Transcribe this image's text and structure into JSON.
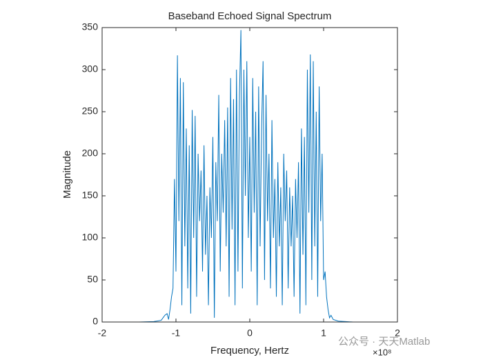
{
  "chart_data": {
    "type": "line",
    "title": "Baseband Echoed Signal Spectrum",
    "x_label": "Frequency, Hertz",
    "y_label": "Magnitude",
    "x_exponent": "×10⁸",
    "watermark": "公众号 · 天天Matlab",
    "color": "#0072bd",
    "xlim": [
      -2,
      2
    ],
    "xticks": [
      -2,
      -1,
      0,
      1,
      2
    ],
    "ylim": [
      0,
      350
    ],
    "yticks": [
      0,
      50,
      100,
      150,
      200,
      250,
      300,
      350
    ],
    "x": [
      -2,
      -1.5,
      -1.3,
      -1.2,
      -1.15,
      -1.12,
      -1.1,
      -1.08,
      -1.06,
      -1.04,
      -1.02,
      -1.0,
      -0.98,
      -0.96,
      -0.94,
      -0.92,
      -0.9,
      -0.88,
      -0.86,
      -0.84,
      -0.82,
      -0.8,
      -0.78,
      -0.76,
      -0.74,
      -0.72,
      -0.7,
      -0.68,
      -0.66,
      -0.64,
      -0.62,
      -0.6,
      -0.58,
      -0.56,
      -0.54,
      -0.52,
      -0.5,
      -0.48,
      -0.46,
      -0.44,
      -0.42,
      -0.4,
      -0.38,
      -0.36,
      -0.34,
      -0.32,
      -0.3,
      -0.28,
      -0.26,
      -0.24,
      -0.22,
      -0.2,
      -0.18,
      -0.16,
      -0.14,
      -0.12,
      -0.1,
      -0.08,
      -0.06,
      -0.04,
      -0.02,
      0,
      0.02,
      0.04,
      0.06,
      0.08,
      0.1,
      0.12,
      0.14,
      0.16,
      0.18,
      0.2,
      0.22,
      0.24,
      0.26,
      0.28,
      0.3,
      0.32,
      0.34,
      0.36,
      0.38,
      0.4,
      0.42,
      0.44,
      0.46,
      0.48,
      0.5,
      0.52,
      0.54,
      0.56,
      0.58,
      0.6,
      0.62,
      0.64,
      0.66,
      0.68,
      0.7,
      0.72,
      0.74,
      0.76,
      0.78,
      0.8,
      0.82,
      0.84,
      0.86,
      0.88,
      0.9,
      0.92,
      0.94,
      0.96,
      0.98,
      1.0,
      1.02,
      1.04,
      1.06,
      1.08,
      1.1,
      1.13,
      1.2,
      1.4,
      2
    ],
    "values": [
      0,
      0,
      0.5,
      2,
      8,
      10,
      3,
      15,
      30,
      40,
      170,
      60,
      317,
      120,
      290,
      20,
      285,
      90,
      230,
      40,
      210,
      10,
      252,
      100,
      245,
      30,
      200,
      120,
      180,
      60,
      210,
      80,
      150,
      20,
      160,
      100,
      220,
      5,
      190,
      120,
      270,
      60,
      200,
      130,
      240,
      90,
      255,
      30,
      290,
      110,
      265,
      20,
      300,
      60,
      270,
      347,
      40,
      300,
      150,
      310,
      100,
      220,
      60,
      290,
      130,
      250,
      20,
      280,
      90,
      230,
      310,
      50,
      270,
      120,
      200,
      40,
      240,
      100,
      170,
      30,
      190,
      90,
      160,
      20,
      200,
      120,
      180,
      40,
      160,
      90,
      150,
      30,
      170,
      100,
      190,
      10,
      230,
      80,
      220,
      20,
      300,
      130,
      318,
      50,
      310,
      90,
      250,
      30,
      280,
      120,
      200,
      50,
      60,
      30,
      15,
      5,
      8,
      3,
      1,
      0,
      0
    ]
  }
}
